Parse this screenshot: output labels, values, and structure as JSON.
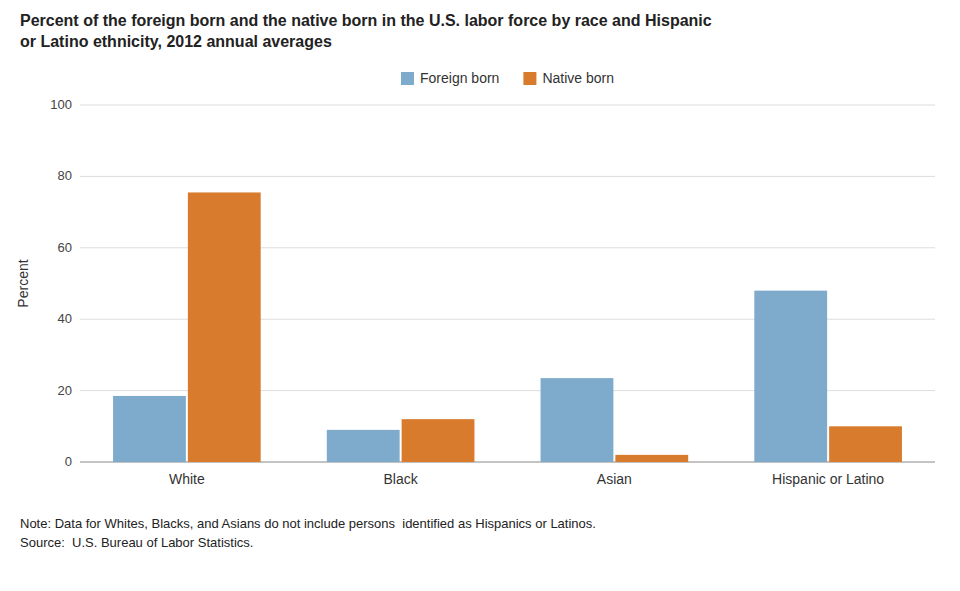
{
  "chart_data": {
    "type": "bar",
    "title": "Percent of the foreign born and the native born in the U.S. labor force by race and Hispanic\nor Latino ethnicity, 2012 annual averages",
    "categories": [
      "White",
      "Black",
      "Asian",
      "Hispanic or Latino"
    ],
    "series": [
      {
        "name": "Foreign born",
        "color": "#7eaacc",
        "values": [
          18.5,
          9.0,
          23.5,
          48.0
        ]
      },
      {
        "name": "Native born",
        "color": "#d97b2c",
        "values": [
          75.5,
          12.0,
          2.0,
          10.0
        ]
      }
    ],
    "ylabel": "Percent",
    "ylim": [
      0,
      100
    ],
    "yticks": [
      0,
      20,
      40,
      60,
      80,
      100
    ],
    "grid": true,
    "legend": "top",
    "annotations": [
      "Note: Data for Whites, Blacks, and Asians do not include persons  identified as Hispanics or Latinos.",
      "Source:  U.S. Bureau of Labor Statistics."
    ]
  }
}
